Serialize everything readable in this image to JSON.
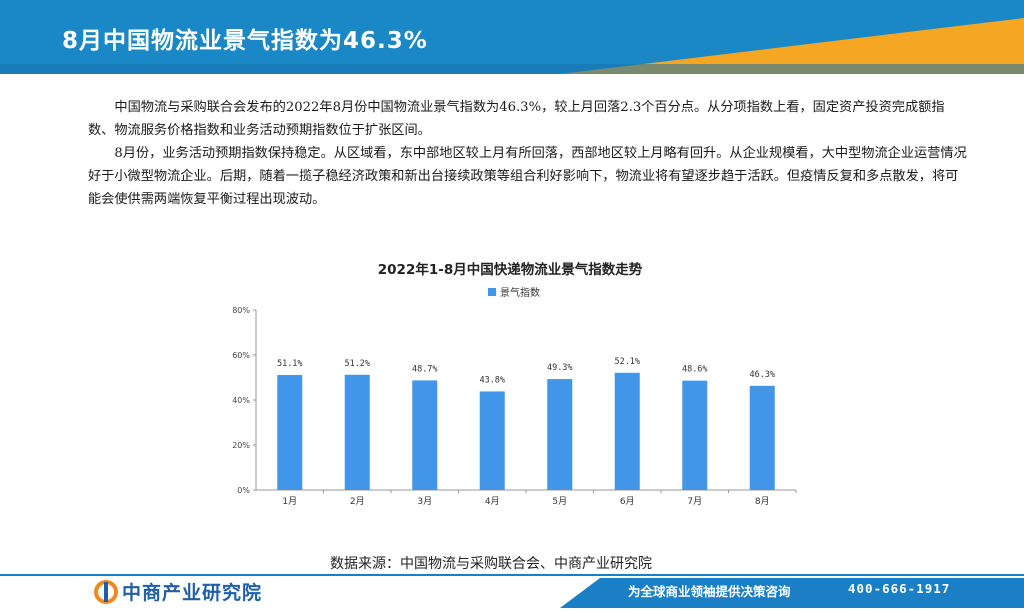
{
  "header": {
    "title": "8月中国物流业景气指数为46.3%"
  },
  "body": {
    "paragraphs": [
      "中国物流与采购联合会发布的2022年8月份中国物流业景气指数为46.3%，较上月回落2.3个百分点。从分项指数上看，固定资产投资完成额指数、物流服务价格指数和业务活动预期指数位于扩张区间。",
      "8月份，业务活动预期指数保持稳定。从区域看，东中部地区较上月有所回落，西部地区较上月略有回升。从企业规模看，大中型物流企业运营情况好于小微型物流企业。后期，随着一揽子稳经济政策和新出台接续政策等组合利好影响下，物流业将有望逐步趋于活跃。但疫情反复和多点散发，将可能会使供需两端恢复平衡过程出现波动。"
    ]
  },
  "chart_data": {
    "type": "bar",
    "title": "2022年1-8月中国快递物流业景气指数走势",
    "categories": [
      "1月",
      "2月",
      "3月",
      "4月",
      "5月",
      "6月",
      "7月",
      "8月"
    ],
    "series": [
      {
        "name": "景气指数",
        "values": [
          51.1,
          51.2,
          48.7,
          43.8,
          49.3,
          52.1,
          48.6,
          46.3
        ]
      }
    ],
    "data_labels": [
      "51.1%",
      "51.2%",
      "48.7%",
      "43.8%",
      "49.3%",
      "52.1%",
      "48.6%",
      "46.3%"
    ],
    "y_ticks": [
      "0%",
      "20%",
      "40%",
      "60%",
      "80%"
    ],
    "ylim": [
      0,
      80
    ],
    "grid": false,
    "legend_position": "top",
    "bar_color": "#4196ea"
  },
  "source": {
    "text": "数据来源：中国物流与采购联合会、中商产业研究院"
  },
  "footer": {
    "logo_text": "中商产业研究院",
    "slogan": "为全球商业领袖提供决策咨询",
    "phone": "400-666-1917"
  },
  "colors": {
    "header_blue": "#1a88c7",
    "header_orange": "#f5a623",
    "footer_blue": "#1a7fc4"
  }
}
